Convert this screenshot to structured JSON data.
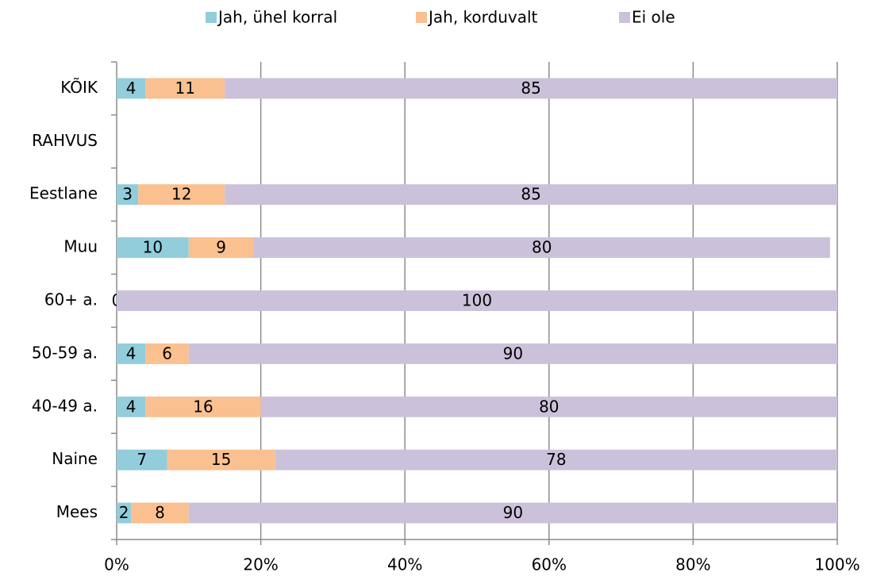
{
  "chart_data": {
    "type": "stacked_barh",
    "categories": [
      "KÕIK",
      "RAHVUS",
      "Eestlane",
      "Muu",
      "60+ a.",
      "50-59 a.",
      "40-49 a.",
      "Naine",
      "Mees"
    ],
    "series": [
      {
        "name": "Jah, ühel korral",
        "color": "#92cddc",
        "values": [
          4,
          null,
          3,
          10,
          0,
          4,
          4,
          7,
          2
        ]
      },
      {
        "name": "Jah, korduvalt",
        "color": "#fac090",
        "values": [
          11,
          null,
          12,
          9,
          null,
          6,
          16,
          15,
          8
        ]
      },
      {
        "name": "Ei ole",
        "color": "#ccc1da",
        "values": [
          85,
          null,
          85,
          80,
          100,
          90,
          80,
          78,
          90
        ]
      }
    ],
    "xlim": [
      0,
      100
    ],
    "xticks": [
      {
        "value": 0,
        "label": "0%"
      },
      {
        "value": 20,
        "label": "20%"
      },
      {
        "value": 40,
        "label": "40%"
      },
      {
        "value": 60,
        "label": "60%"
      },
      {
        "value": 80,
        "label": "80%"
      },
      {
        "value": 100,
        "label": "100%"
      }
    ],
    "grid": true,
    "legend": "top"
  }
}
